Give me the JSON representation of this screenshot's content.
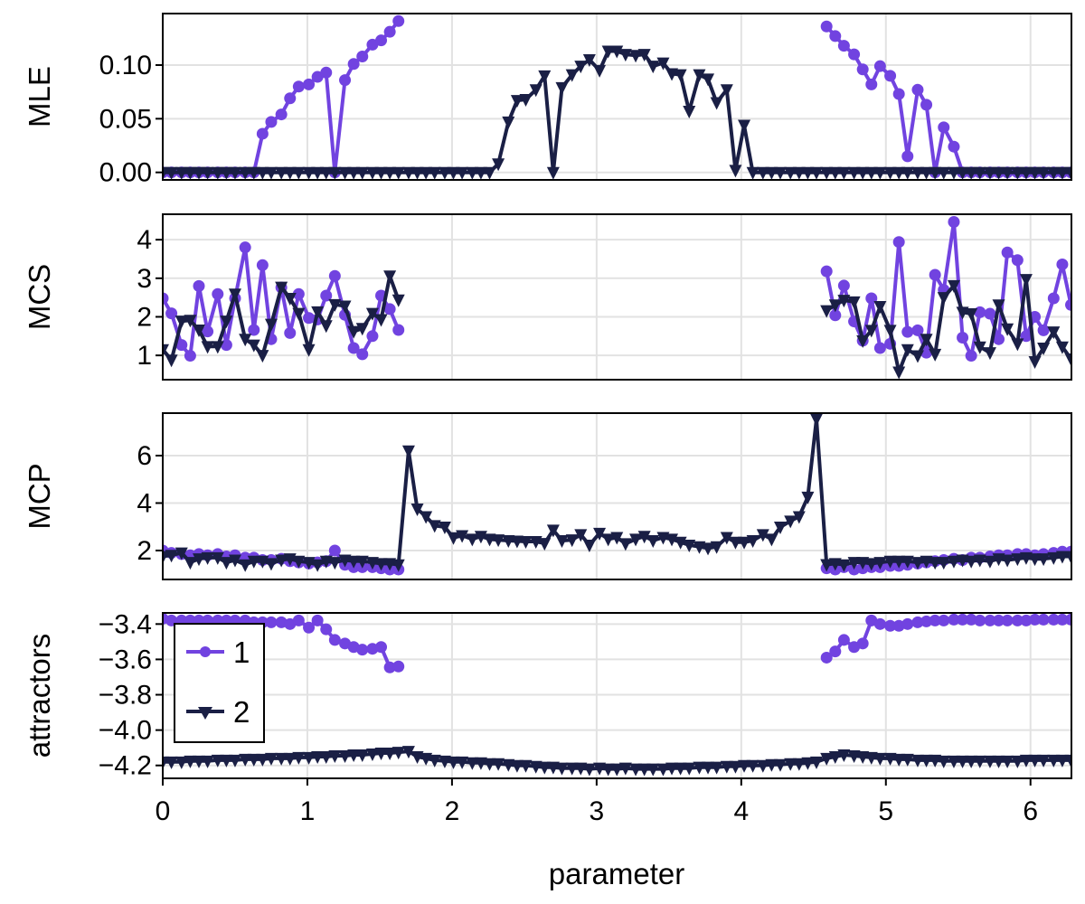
{
  "chart_data": {
    "type": "line",
    "layout": "4 vertically stacked panels sharing the x axis",
    "grid": true,
    "legend": {
      "placement": "top-left of bottom panel",
      "entries": [
        "1",
        "2"
      ]
    },
    "colors": {
      "1": "#7143E0",
      "2": "#1A1F45"
    },
    "markers": {
      "1": "circle",
      "2": "triangle-down"
    },
    "xlabel": "parameter",
    "xlim": [
      0,
      6.283
    ],
    "xticks": [
      "0",
      "1",
      "2",
      "3",
      "4",
      "5",
      "6"
    ],
    "x": [
      0.0,
      0.06,
      0.13,
      0.19,
      0.25,
      0.31,
      0.38,
      0.44,
      0.5,
      0.57,
      0.63,
      0.69,
      0.75,
      0.82,
      0.88,
      0.94,
      1.01,
      1.07,
      1.13,
      1.19,
      1.26,
      1.32,
      1.38,
      1.45,
      1.51,
      1.57,
      1.63,
      1.7,
      1.76,
      1.82,
      1.88,
      1.95,
      2.01,
      2.07,
      2.14,
      2.2,
      2.26,
      2.32,
      2.39,
      2.45,
      2.51,
      2.58,
      2.64,
      2.7,
      2.76,
      2.83,
      2.89,
      2.95,
      3.02,
      3.08,
      3.14,
      3.2,
      3.27,
      3.33,
      3.39,
      3.46,
      3.52,
      3.58,
      3.64,
      3.71,
      3.77,
      3.83,
      3.9,
      3.96,
      4.02,
      4.08,
      4.15,
      4.21,
      4.27,
      4.34,
      4.4,
      4.46,
      4.52,
      4.59,
      4.65,
      4.71,
      4.78,
      4.84,
      4.9,
      4.96,
      5.03,
      5.09,
      5.15,
      5.22,
      5.28,
      5.34,
      5.4,
      5.47,
      5.53,
      5.59,
      5.65,
      5.72,
      5.78,
      5.84,
      5.91,
      5.97,
      6.03,
      6.09,
      6.16,
      6.22,
      6.28
    ],
    "panels": [
      {
        "ylabel": "MLE",
        "ylim": [
          -0.007,
          0.148
        ],
        "yticks": [
          0,
          0.05,
          0.1
        ],
        "ytick_labels": [
          "0.00",
          "0.05",
          "0.10"
        ],
        "series": [
          {
            "name": "1",
            "values": [
              0,
              0,
              0,
              0,
              0,
              0,
              0,
              0,
              0,
              0,
              0,
              0.036,
              0.047,
              0.054,
              0.069,
              0.08,
              0.082,
              0.089,
              0.093,
              0,
              0.086,
              0.101,
              0.108,
              0.119,
              0.123,
              0.131,
              0.141,
              null,
              null,
              null,
              null,
              null,
              null,
              null,
              null,
              null,
              null,
              null,
              null,
              null,
              null,
              null,
              null,
              null,
              null,
              null,
              null,
              null,
              null,
              null,
              null,
              null,
              null,
              null,
              null,
              null,
              null,
              null,
              null,
              null,
              null,
              null,
              null,
              null,
              null,
              null,
              null,
              null,
              null,
              null,
              null,
              null,
              null,
              0.136,
              0.127,
              0.118,
              0.11,
              0.096,
              0.082,
              0.099,
              0.09,
              0.073,
              0.015,
              0.077,
              0.063,
              0,
              0.042,
              0.024,
              0,
              0,
              0,
              0,
              0,
              0,
              0,
              0,
              0,
              0,
              0,
              0,
              0
            ]
          },
          {
            "name": "2",
            "values": [
              0,
              0,
              0,
              0,
              0,
              0,
              0,
              0,
              0,
              0,
              0,
              0,
              0,
              0,
              0,
              0,
              0,
              0,
              0,
              0,
              0,
              0,
              0,
              0,
              0,
              0,
              0,
              0,
              0,
              0,
              0,
              0,
              0,
              0,
              0,
              0,
              0,
              0.008,
              0.047,
              0.067,
              0.068,
              0.077,
              0.09,
              0,
              0.079,
              0.091,
              0.099,
              0.105,
              0.095,
              0.113,
              0.113,
              0.11,
              0.109,
              0.11,
              0.099,
              0.102,
              0.092,
              0.091,
              0.057,
              0.091,
              0.087,
              0.065,
              0.077,
              0.002,
              0.044,
              0,
              0,
              0,
              0,
              0,
              0,
              0,
              0,
              0,
              0,
              0,
              0,
              0,
              0,
              0,
              0,
              0,
              0,
              0,
              0,
              0,
              0,
              0,
              0,
              0,
              0,
              0,
              0,
              0,
              0,
              0,
              0,
              0,
              0,
              0,
              0
            ]
          }
        ]
      },
      {
        "ylabel": "MCS",
        "ylim": [
          0.37,
          4.66
        ],
        "yticks": [
          1,
          2,
          3,
          4
        ],
        "ytick_labels": [
          "1",
          "2",
          "3",
          "4"
        ],
        "series": [
          {
            "name": "1",
            "values": [
              2.48,
              2.09,
              1.27,
              0.99,
              2.8,
              1.62,
              2.59,
              1.27,
              2.48,
              3.8,
              1.66,
              3.34,
              1.42,
              2.76,
              1.58,
              2.59,
              1.97,
              1.93,
              2.55,
              3.06,
              2.05,
              1.19,
              1.03,
              1.5,
              2.55,
              2.2,
              1.66,
              null,
              null,
              null,
              null,
              null,
              null,
              null,
              null,
              null,
              null,
              null,
              null,
              null,
              null,
              null,
              null,
              null,
              null,
              null,
              null,
              null,
              null,
              null,
              null,
              null,
              null,
              null,
              null,
              null,
              null,
              null,
              null,
              null,
              null,
              null,
              null,
              null,
              null,
              null,
              null,
              null,
              null,
              null,
              null,
              null,
              null,
              3.18,
              2.04,
              2.81,
              1.88,
              1.38,
              2.48,
              1.19,
              1.3,
              3.94,
              1.61,
              1.65,
              1.07,
              3.09,
              2.7,
              4.46,
              1.46,
              0.99,
              2.12,
              2.08,
              1.42,
              3.67,
              3.47,
              1.5,
              2.0,
              1.65,
              2.48,
              3.36,
              2.31
            ]
          },
          {
            "name": "2",
            "values": [
              1.15,
              0.88,
              1.89,
              1.91,
              1.66,
              1.23,
              1.23,
              1.89,
              2.59,
              1.42,
              1.27,
              1.0,
              1.81,
              2.77,
              2.48,
              2.09,
              1.15,
              2.13,
              1.77,
              2.32,
              2.28,
              1.62,
              1.7,
              2.09,
              1.93,
              3.06,
              2.44,
              null,
              null,
              null,
              null,
              null,
              null,
              null,
              null,
              null,
              null,
              null,
              null,
              null,
              null,
              null,
              null,
              null,
              null,
              null,
              null,
              null,
              null,
              null,
              null,
              null,
              null,
              null,
              null,
              null,
              null,
              null,
              null,
              null,
              null,
              null,
              null,
              null,
              null,
              null,
              null,
              null,
              null,
              null,
              null,
              null,
              null,
              2.16,
              2.31,
              2.43,
              2.39,
              1.38,
              1.65,
              2.27,
              1.65,
              0.57,
              1.15,
              0.99,
              1.42,
              1.03,
              2.5,
              2.81,
              2.12,
              2.08,
              1.22,
              1.07,
              2.31,
              1.69,
              1.3,
              2.97,
              0.84,
              1.19,
              1.61,
              1.22,
              0.91
            ]
          }
        ]
      },
      {
        "ylabel": "MCP",
        "ylim": [
          0.78,
          7.79
        ],
        "yticks": [
          2,
          4,
          6
        ],
        "ytick_labels": [
          "2",
          "4",
          "6"
        ],
        "series": [
          {
            "name": "1",
            "values": [
              2.0,
              1.9,
              1.85,
              1.8,
              1.85,
              1.8,
              1.85,
              1.75,
              1.8,
              1.7,
              1.7,
              1.6,
              1.6,
              1.65,
              1.55,
              1.5,
              1.45,
              1.5,
              1.55,
              2.0,
              1.4,
              1.3,
              1.3,
              1.3,
              1.25,
              1.2,
              1.2,
              null,
              null,
              null,
              null,
              null,
              null,
              null,
              null,
              null,
              null,
              null,
              null,
              null,
              null,
              null,
              null,
              null,
              null,
              null,
              null,
              null,
              null,
              null,
              null,
              null,
              null,
              null,
              null,
              null,
              null,
              null,
              null,
              null,
              null,
              null,
              null,
              null,
              null,
              null,
              null,
              null,
              null,
              null,
              null,
              null,
              null,
              1.25,
              1.2,
              1.3,
              1.2,
              1.25,
              1.3,
              1.3,
              1.35,
              1.35,
              1.4,
              1.45,
              1.5,
              1.55,
              1.6,
              1.65,
              1.6,
              1.7,
              1.7,
              1.75,
              1.8,
              1.8,
              1.85,
              1.85,
              1.8,
              1.85,
              1.9,
              1.95,
              1.95
            ]
          },
          {
            "name": "2",
            "values": [
              1.75,
              1.8,
              1.9,
              1.5,
              1.65,
              1.7,
              1.7,
              1.5,
              1.6,
              1.4,
              1.55,
              1.55,
              1.45,
              1.6,
              1.65,
              1.55,
              1.5,
              1.4,
              1.55,
              1.5,
              1.6,
              1.55,
              1.55,
              1.5,
              1.45,
              1.45,
              1.4,
              6.2,
              3.75,
              3.43,
              3.05,
              2.99,
              2.54,
              2.63,
              2.48,
              2.6,
              2.48,
              2.45,
              2.42,
              2.4,
              2.38,
              2.38,
              2.3,
              2.86,
              2.42,
              2.45,
              2.67,
              2.23,
              2.73,
              2.48,
              2.55,
              2.29,
              2.48,
              2.6,
              2.42,
              2.55,
              2.48,
              2.35,
              2.23,
              2.16,
              2.1,
              2.16,
              2.55,
              2.35,
              2.35,
              2.42,
              2.67,
              2.48,
              2.99,
              3.24,
              3.43,
              4.25,
              7.54,
              1.41,
              1.45,
              1.4,
              1.5,
              1.5,
              1.45,
              1.5,
              1.55,
              1.55,
              1.55,
              1.5,
              1.55,
              1.5,
              1.5,
              1.55,
              1.6,
              1.55,
              1.6,
              1.55,
              1.65,
              1.6,
              1.65,
              1.7,
              1.65,
              1.65,
              1.7,
              1.75,
              1.75
            ]
          }
        ]
      },
      {
        "ylabel": "attractors",
        "ylim": [
          -4.273,
          -3.337
        ],
        "yticks": [
          -3.4,
          -3.6,
          -3.8,
          -4.0,
          -4.2
        ],
        "ytick_labels": [
          "−3.4",
          "−3.6",
          "−3.8",
          "−4.0",
          "−4.2"
        ],
        "series": [
          {
            "name": "1",
            "values": [
              -3.37,
              -3.38,
              -3.38,
              -3.38,
              -3.38,
              -3.38,
              -3.38,
              -3.38,
              -3.38,
              -3.38,
              -3.39,
              -3.39,
              -3.39,
              -3.39,
              -3.4,
              -3.38,
              -3.42,
              -3.38,
              -3.43,
              -3.49,
              -3.51,
              -3.53,
              -3.545,
              -3.54,
              -3.53,
              -3.645,
              -3.64,
              null,
              null,
              null,
              null,
              null,
              null,
              null,
              null,
              null,
              null,
              null,
              null,
              null,
              null,
              null,
              null,
              null,
              null,
              null,
              null,
              null,
              null,
              null,
              null,
              null,
              null,
              null,
              null,
              null,
              null,
              null,
              null,
              null,
              null,
              null,
              null,
              null,
              null,
              null,
              null,
              null,
              null,
              null,
              null,
              null,
              null,
              -3.59,
              -3.555,
              -3.49,
              -3.53,
              -3.51,
              -3.38,
              -3.4,
              -3.41,
              -3.41,
              -3.4,
              -3.39,
              -3.385,
              -3.38,
              -3.38,
              -3.375,
              -3.375,
              -3.375,
              -3.38,
              -3.38,
              -3.38,
              -3.38,
              -3.38,
              -3.38,
              -3.375,
              -3.375,
              -3.375,
              -3.375,
              -3.375
            ]
          },
          {
            "name": "2",
            "values": [
              -4.18,
              -4.18,
              -4.18,
              -4.175,
              -4.175,
              -4.175,
              -4.17,
              -4.17,
              -4.17,
              -4.165,
              -4.165,
              -4.165,
              -4.16,
              -4.16,
              -4.16,
              -4.155,
              -4.155,
              -4.15,
              -4.15,
              -4.145,
              -4.145,
              -4.14,
              -4.14,
              -4.135,
              -4.13,
              -4.13,
              -4.125,
              -4.12,
              -4.15,
              -4.16,
              -4.17,
              -4.175,
              -4.18,
              -4.18,
              -4.185,
              -4.185,
              -4.19,
              -4.19,
              -4.195,
              -4.2,
              -4.2,
              -4.205,
              -4.21,
              -4.21,
              -4.215,
              -4.215,
              -4.215,
              -4.22,
              -4.215,
              -4.22,
              -4.22,
              -4.215,
              -4.22,
              -4.22,
              -4.22,
              -4.22,
              -4.215,
              -4.215,
              -4.215,
              -4.21,
              -4.21,
              -4.21,
              -4.205,
              -4.205,
              -4.2,
              -4.2,
              -4.2,
              -4.195,
              -4.195,
              -4.19,
              -4.19,
              -4.185,
              -4.18,
              -4.16,
              -4.15,
              -4.14,
              -4.145,
              -4.15,
              -4.155,
              -4.16,
              -4.16,
              -4.165,
              -4.165,
              -4.17,
              -4.17,
              -4.17,
              -4.175,
              -4.175,
              -4.175,
              -4.175,
              -4.175,
              -4.175,
              -4.175,
              -4.175,
              -4.175,
              -4.17,
              -4.17,
              -4.17,
              -4.17,
              -4.17,
              -4.17
            ]
          }
        ]
      }
    ]
  }
}
